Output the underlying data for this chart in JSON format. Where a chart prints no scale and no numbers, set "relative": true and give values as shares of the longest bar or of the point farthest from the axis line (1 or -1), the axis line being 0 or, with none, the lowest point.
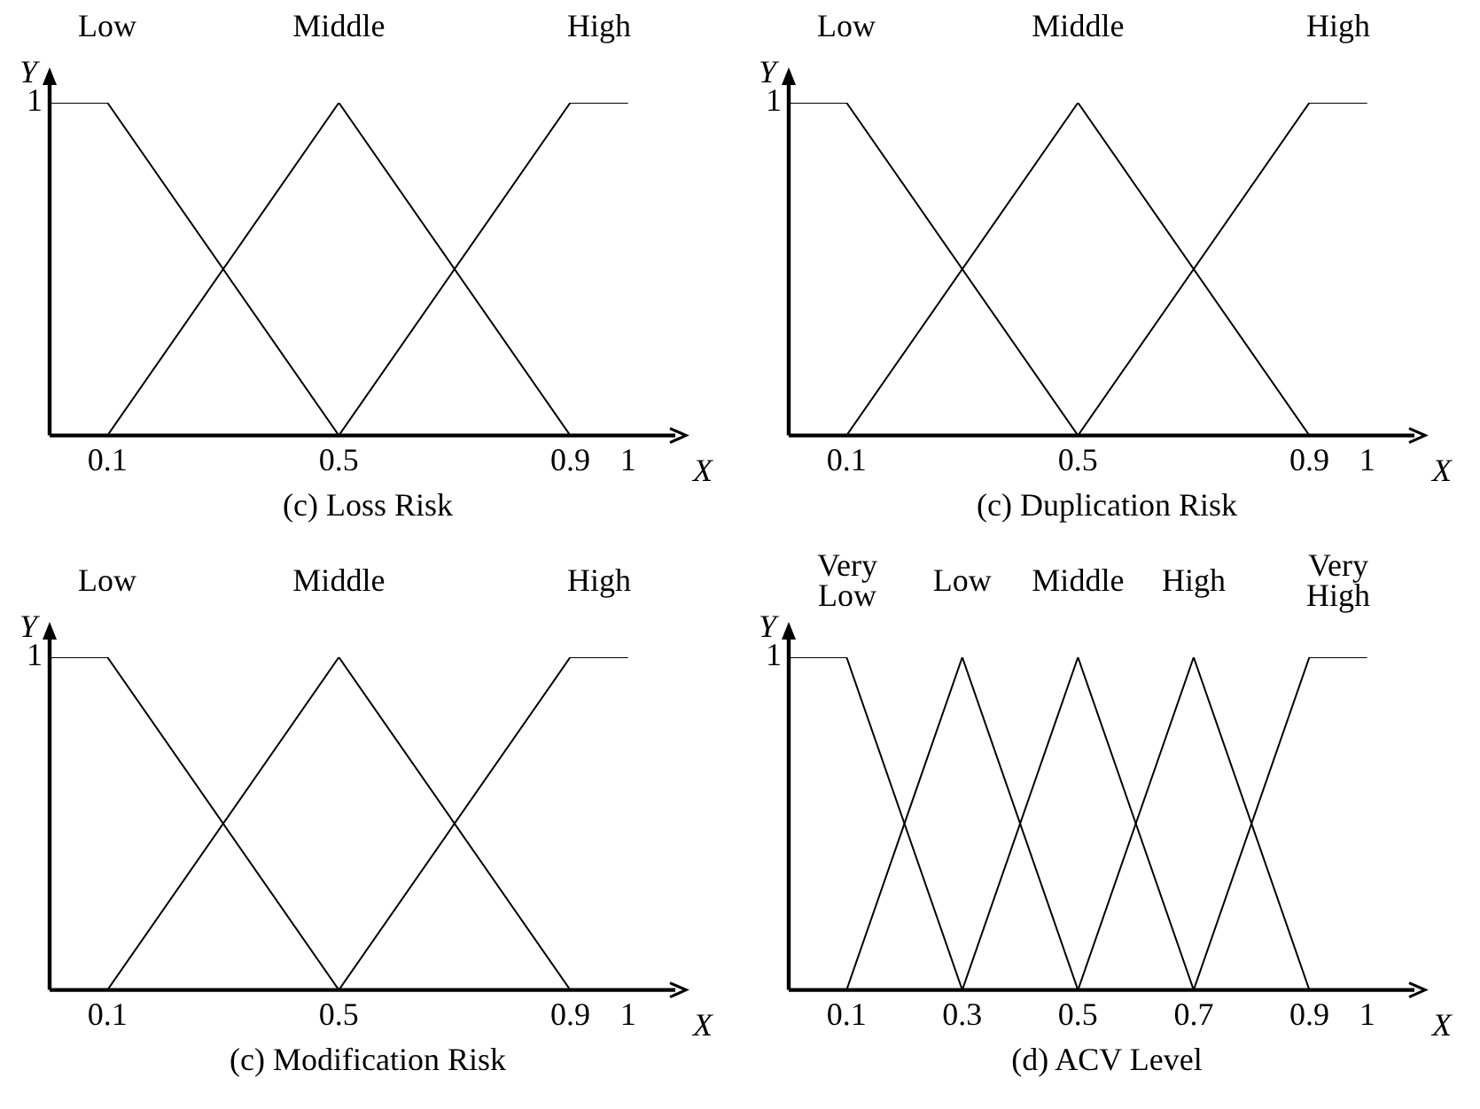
{
  "chart_data": [
    {
      "type": "line",
      "title": "(c) Loss Risk",
      "xlabel": "X",
      "ylabel": "Y",
      "relative": true,
      "annotations": [
        "1"
      ],
      "xlim": [
        0,
        1.1
      ],
      "xticks": [
        0.1,
        0.5,
        0.9,
        1
      ],
      "grid": false,
      "legend": false,
      "marker": "none",
      "line_style": "solid",
      "series": [
        {
          "name": "Low",
          "color": "#000000",
          "x": [
            0,
            0.1,
            0.5
          ],
          "values": [
            1,
            1,
            0
          ]
        },
        {
          "name": "Middle",
          "color": "#000000",
          "x": [
            0.1,
            0.5,
            0.9
          ],
          "values": [
            0,
            1,
            0
          ]
        },
        {
          "name": "High",
          "color": "#000000",
          "x": [
            0.5,
            0.9,
            1
          ],
          "values": [
            0,
            1,
            1
          ]
        }
      ]
    },
    {
      "type": "line",
      "title": "(c) Duplication Risk",
      "xlabel": "X",
      "ylabel": "Y",
      "relative": true,
      "annotations": [
        "1"
      ],
      "xlim": [
        0,
        1.1
      ],
      "xticks": [
        0.1,
        0.5,
        0.9,
        1
      ],
      "grid": false,
      "legend": false,
      "marker": "none",
      "line_style": "solid",
      "series": [
        {
          "name": "Low",
          "color": "#000000",
          "x": [
            0,
            0.1,
            0.5
          ],
          "values": [
            1,
            1,
            0
          ]
        },
        {
          "name": "Middle",
          "color": "#000000",
          "x": [
            0.1,
            0.5,
            0.9
          ],
          "values": [
            0,
            1,
            0
          ]
        },
        {
          "name": "High",
          "color": "#000000",
          "x": [
            0.5,
            0.9,
            1
          ],
          "values": [
            0,
            1,
            1
          ]
        }
      ]
    },
    {
      "type": "line",
      "title": "(c) Modification Risk",
      "xlabel": "X",
      "ylabel": "Y",
      "relative": true,
      "annotations": [
        "1"
      ],
      "xlim": [
        0,
        1.1
      ],
      "xticks": [
        0.1,
        0.5,
        0.9,
        1
      ],
      "grid": false,
      "legend": false,
      "marker": "none",
      "line_style": "solid",
      "series": [
        {
          "name": "Low",
          "color": "#000000",
          "x": [
            0,
            0.1,
            0.5
          ],
          "values": [
            1,
            1,
            0
          ]
        },
        {
          "name": "Middle",
          "color": "#000000",
          "x": [
            0.1,
            0.5,
            0.9
          ],
          "values": [
            0,
            1,
            0
          ]
        },
        {
          "name": "High",
          "color": "#000000",
          "x": [
            0.5,
            0.9,
            1
          ],
          "values": [
            0,
            1,
            1
          ]
        }
      ]
    },
    {
      "type": "line",
      "title": "(d) ACV Level",
      "xlabel": "X",
      "ylabel": "Y",
      "relative": true,
      "annotations": [
        "1"
      ],
      "xlim": [
        0,
        1.1
      ],
      "xticks": [
        0.1,
        0.3,
        0.5,
        0.7,
        0.9,
        1
      ],
      "grid": false,
      "legend": false,
      "marker": "none",
      "line_style": "solid",
      "series": [
        {
          "name": "Very Low",
          "color": "#000000",
          "x": [
            0,
            0.1,
            0.3
          ],
          "values": [
            1,
            1,
            0
          ]
        },
        {
          "name": "Low",
          "color": "#000000",
          "x": [
            0.1,
            0.3,
            0.5
          ],
          "values": [
            0,
            1,
            0
          ]
        },
        {
          "name": "Middle",
          "color": "#000000",
          "x": [
            0.3,
            0.5,
            0.7
          ],
          "values": [
            0,
            1,
            0
          ]
        },
        {
          "name": "High",
          "color": "#000000",
          "x": [
            0.5,
            0.7,
            0.9
          ],
          "values": [
            0,
            1,
            0
          ]
        },
        {
          "name": "Very High",
          "color": "#000000",
          "x": [
            0.7,
            0.9,
            1
          ],
          "values": [
            0,
            1,
            1
          ]
        }
      ]
    }
  ]
}
